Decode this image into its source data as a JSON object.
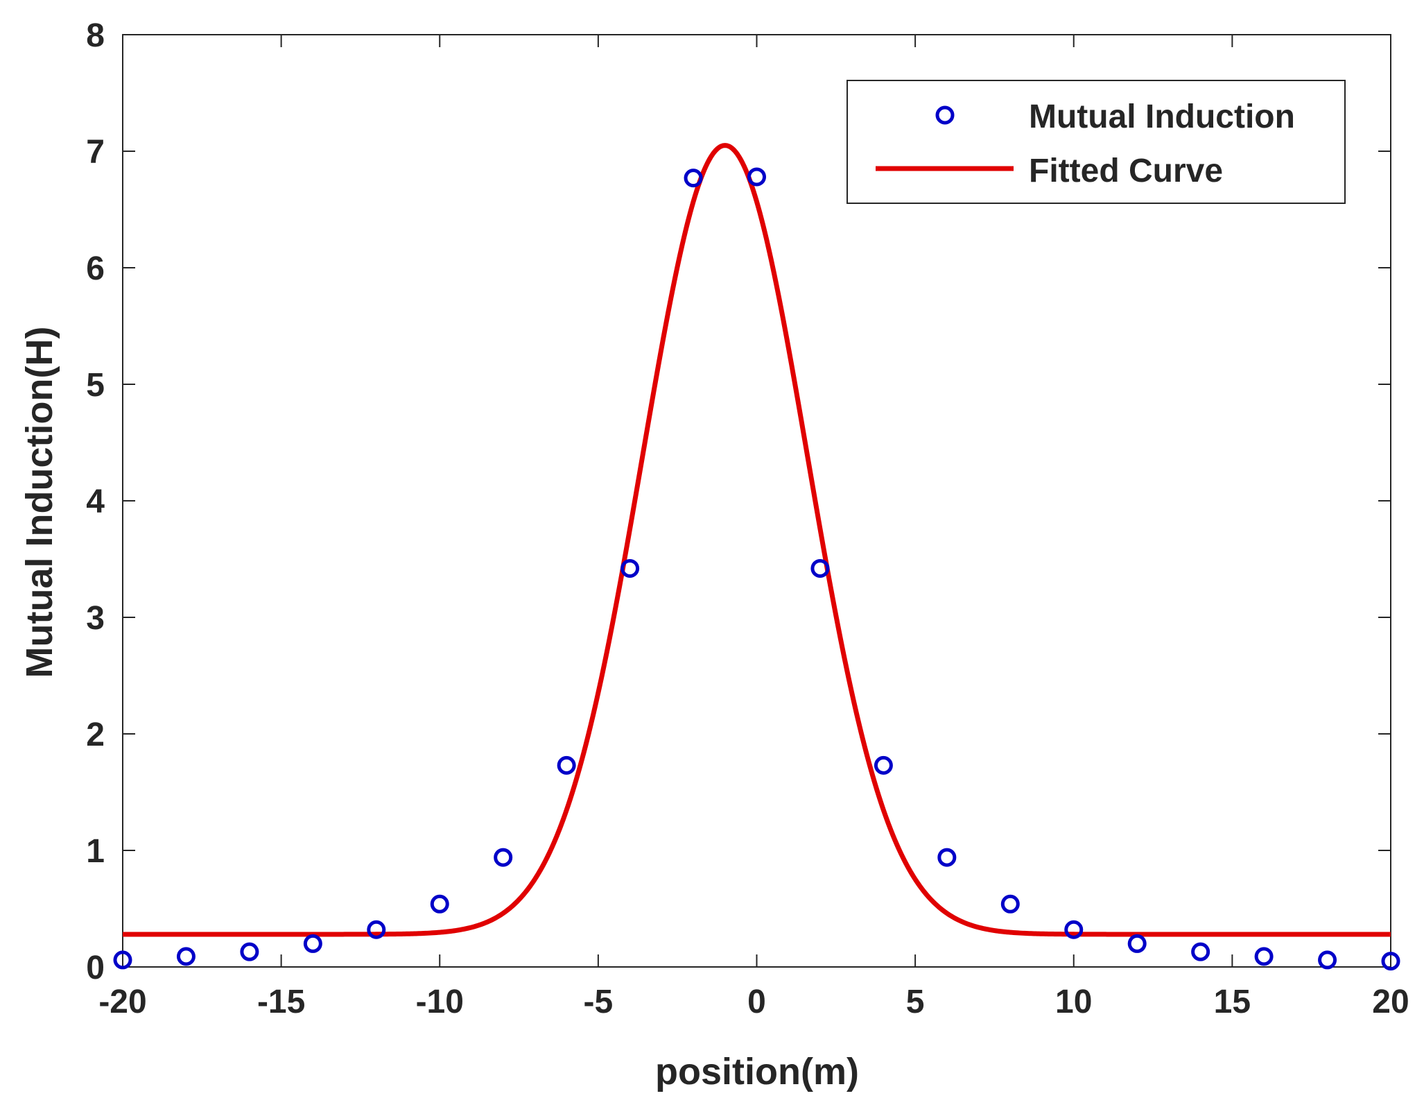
{
  "chart_data": {
    "type": "scatter",
    "title": "",
    "xlabel": "position(m)",
    "ylabel": "Mutual Induction(H)",
    "xlim": [
      -20,
      20
    ],
    "ylim": [
      0,
      8
    ],
    "xticks": [
      -20,
      -15,
      -10,
      -5,
      0,
      5,
      10,
      15,
      20
    ],
    "yticks": [
      0,
      1,
      2,
      3,
      4,
      5,
      6,
      7,
      8
    ],
    "grid": false,
    "legend_position": "top-right",
    "series": [
      {
        "name": "Mutual Induction",
        "kind": "markers",
        "marker": "circle",
        "color": "#0000c8",
        "x": [
          -20,
          -18,
          -16,
          -14,
          -12,
          -10,
          -8,
          -6,
          -4,
          -2,
          0,
          2,
          4,
          6,
          8,
          10,
          12,
          14,
          16,
          18,
          20
        ],
        "y": [
          0.06,
          0.09,
          0.13,
          0.2,
          0.32,
          0.54,
          0.94,
          1.73,
          3.42,
          6.77,
          6.78,
          3.42,
          1.73,
          0.94,
          0.54,
          0.32,
          0.2,
          0.13,
          0.09,
          0.06,
          0.05
        ]
      },
      {
        "name": "Fitted Curve",
        "kind": "line",
        "color": "#e00000",
        "model": "gaussian_plus_offset",
        "peak_x": -1.0,
        "amplitude": 6.77,
        "offset": 0.28,
        "sigma": 2.6
      }
    ]
  }
}
